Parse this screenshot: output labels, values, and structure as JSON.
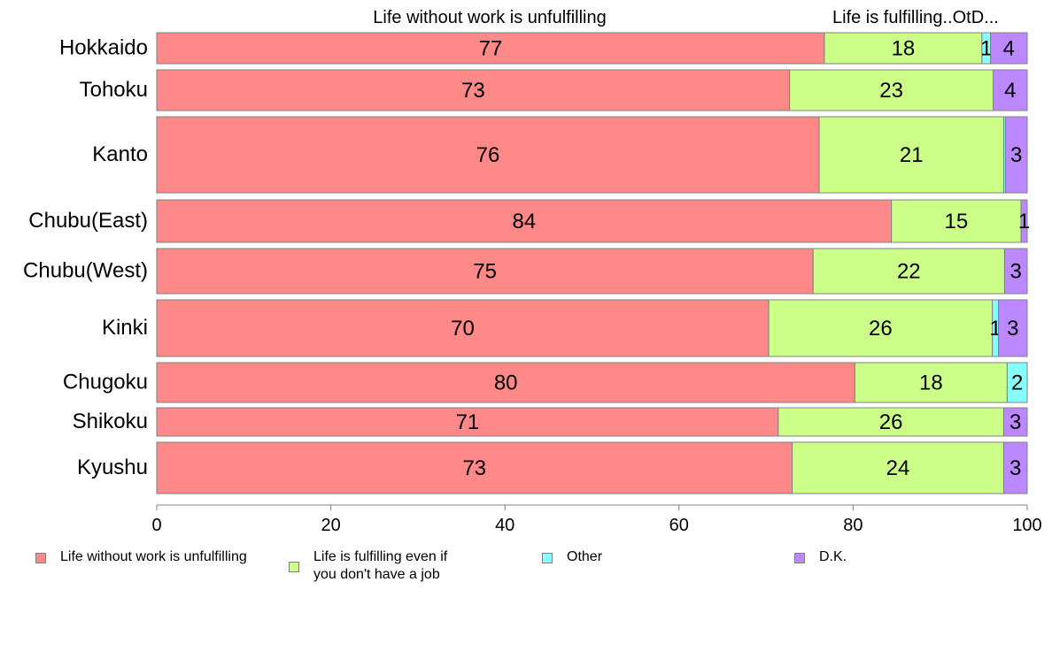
{
  "chart_data": {
    "type": "bar",
    "orientation": "horizontal",
    "stacked": true,
    "categories": [
      "Hokkaido",
      "Tohoku",
      "Kanto",
      "Chubu(East)",
      "Chubu(West)",
      "Kinki",
      "Chugoku",
      "Shikoku",
      "Kyushu"
    ],
    "series": [
      {
        "name": "Life without work is unfulfilling",
        "color": "#ff8888",
        "values": [
          76.7,
          72.7,
          76.1,
          84.4,
          75.4,
          70.3,
          80.2,
          71.4,
          73.0
        ]
      },
      {
        "name": "Life is fulfilling even if you don't have a job",
        "color": "#ccff88",
        "values": [
          18.1,
          23.4,
          21.2,
          14.9,
          22.0,
          25.7,
          17.5,
          25.9,
          24.3
        ]
      },
      {
        "name": "Other",
        "color": "#88ffff",
        "values": [
          1.0,
          0.0,
          0.2,
          0.0,
          0.0,
          0.7,
          2.3,
          0.0,
          0.0
        ]
      },
      {
        "name": "D.K.",
        "color": "#bb88ff",
        "values": [
          4.2,
          3.9,
          2.5,
          0.7,
          2.6,
          3.3,
          0.0,
          2.7,
          2.7
        ]
      }
    ],
    "data_labels": [
      [
        "77",
        "18",
        "1",
        "4"
      ],
      [
        "73",
        "23",
        "",
        "4"
      ],
      [
        "76",
        "21",
        "",
        "3"
      ],
      [
        "84",
        "15",
        "",
        "1"
      ],
      [
        "75",
        "22",
        "",
        "3"
      ],
      [
        "70",
        "26",
        "1",
        "3"
      ],
      [
        "80",
        "18",
        "2",
        ""
      ],
      [
        "71",
        "26",
        "",
        "3"
      ],
      [
        "73",
        "24",
        "",
        "3"
      ]
    ],
    "top_labels": [
      "Life without work is unfulfilling",
      "Life is fulfilling...",
      "Ot...",
      "D..."
    ],
    "xlim": [
      0,
      100
    ],
    "xticks": [
      0,
      20,
      40,
      60,
      80,
      100
    ],
    "legend_position": "bottom",
    "grid": false
  },
  "legend": {
    "items": [
      {
        "label": "Life without work is unfulfilling",
        "color": "#ff8888"
      },
      {
        "label": "Life is fulfilling even if\nyou don't have a job",
        "color": "#ccff88"
      },
      {
        "label": "Other",
        "color": "#88ffff"
      },
      {
        "label": "D.K.",
        "color": "#bb88ff"
      }
    ]
  }
}
